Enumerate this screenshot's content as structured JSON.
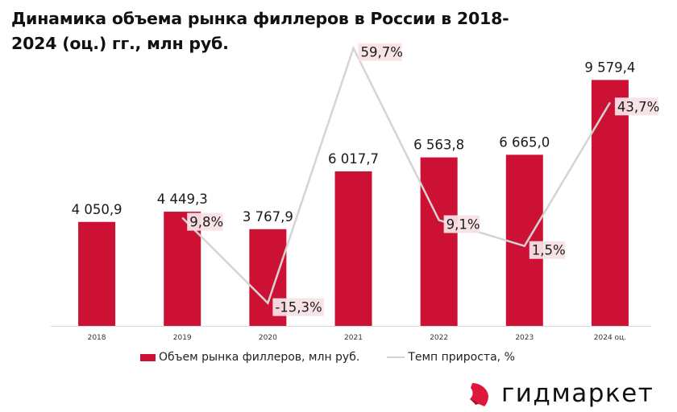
{
  "chart_data": {
    "type": "bar+line",
    "title": "Динамика объема рынка филлеров в России в 2018-2024 (оц.) гг., млн руб.",
    "categories": [
      "2018",
      "2019",
      "2020",
      "2021",
      "2022",
      "2023",
      "2024 оц."
    ],
    "series": [
      {
        "name": "Объем рынка филлеров,  млн руб.",
        "type": "bar",
        "color": "#cc1134",
        "values": [
          4050.9,
          4449.3,
          3767.9,
          6017.7,
          6563.8,
          6665.0,
          9579.4
        ],
        "labels": [
          "4 050,9",
          "4 449,3",
          "3 767,9",
          "6 017,7",
          "6 563,8",
          "6 665,0",
          "9 579,4"
        ]
      },
      {
        "name": "Темп прироста, %",
        "type": "line",
        "color": "#d4d4d4",
        "values": [
          null,
          9.8,
          -15.3,
          59.7,
          9.1,
          1.5,
          43.7
        ],
        "labels": [
          null,
          "9,8%",
          "-15,3%",
          "59,7%",
          "9,1%",
          "1,5%",
          "43,7%"
        ]
      }
    ],
    "ylim_bar": [
      0,
      10500
    ],
    "ylim_line": [
      -22,
      62
    ],
    "grid": false,
    "legend": "bottom-center"
  },
  "legend": {
    "bar_label": "Объем рынка филлеров,  млн руб.",
    "line_label": "Темп прироста, %"
  },
  "logo": {
    "text": "гидмаркет",
    "color": "#e0173c"
  }
}
